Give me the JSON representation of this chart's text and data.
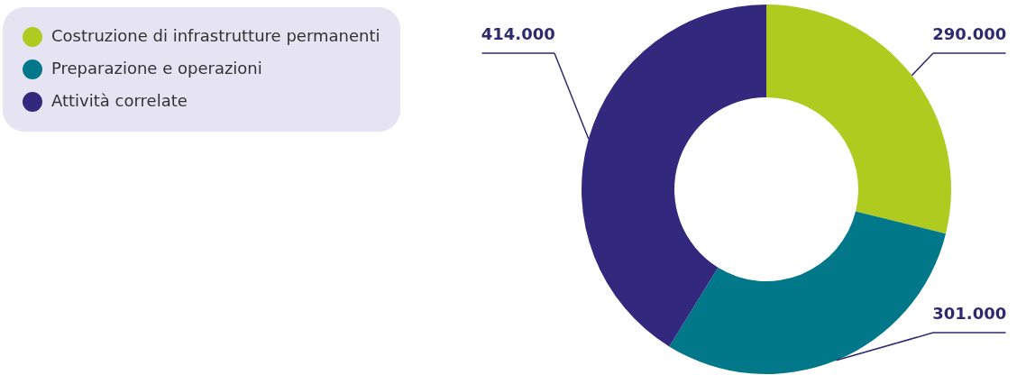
{
  "chart_data": {
    "type": "donut",
    "categories": [
      "Costruzione di infrastrutture permanenti",
      "Preparazione e operazioni",
      "Attività correlate"
    ],
    "values": [
      290000,
      301000,
      414000
    ],
    "colors": [
      "#b0cb1f",
      "#00788a",
      "#32287d"
    ],
    "value_labels": [
      "290.000",
      "301.000",
      "414.000"
    ],
    "legend": "top left"
  }
}
